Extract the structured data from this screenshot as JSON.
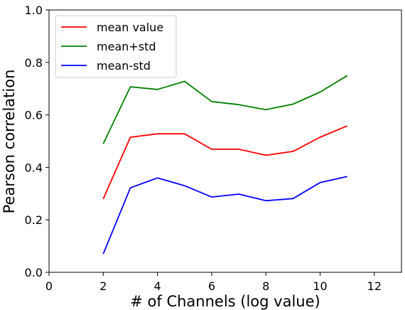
{
  "chart_data": {
    "type": "line",
    "xlabel": "# of Channels (log value)",
    "ylabel": "Pearson correlation",
    "xlim": [
      0,
      13
    ],
    "ylim": [
      0.0,
      1.0
    ],
    "xticks": [
      0,
      2,
      4,
      6,
      8,
      10,
      12
    ],
    "xtick_labels": [
      "0",
      "2",
      "4",
      "6",
      "8",
      "10",
      "12"
    ],
    "yticks": [
      0.0,
      0.2,
      0.4,
      0.6,
      0.8,
      1.0
    ],
    "ytick_labels": [
      "0.0",
      "0.2",
      "0.4",
      "0.6",
      "0.8",
      "1.0"
    ],
    "grid": false,
    "legend_position": "top-left",
    "x": [
      2,
      3,
      4,
      5,
      6,
      7,
      8,
      9,
      10,
      11
    ],
    "series": [
      {
        "name": "mean value",
        "color": "#ff0000",
        "values": [
          0.28,
          0.515,
          0.528,
          0.528,
          0.469,
          0.469,
          0.446,
          0.461,
          0.515,
          0.558
        ]
      },
      {
        "name": "mean+std",
        "color": "#008000",
        "values": [
          0.49,
          0.707,
          0.697,
          0.728,
          0.651,
          0.639,
          0.62,
          0.641,
          0.687,
          0.75
        ]
      },
      {
        "name": "mean-std",
        "color": "#0000ff",
        "values": [
          0.07,
          0.322,
          0.36,
          0.33,
          0.287,
          0.298,
          0.273,
          0.281,
          0.342,
          0.365
        ]
      }
    ]
  }
}
